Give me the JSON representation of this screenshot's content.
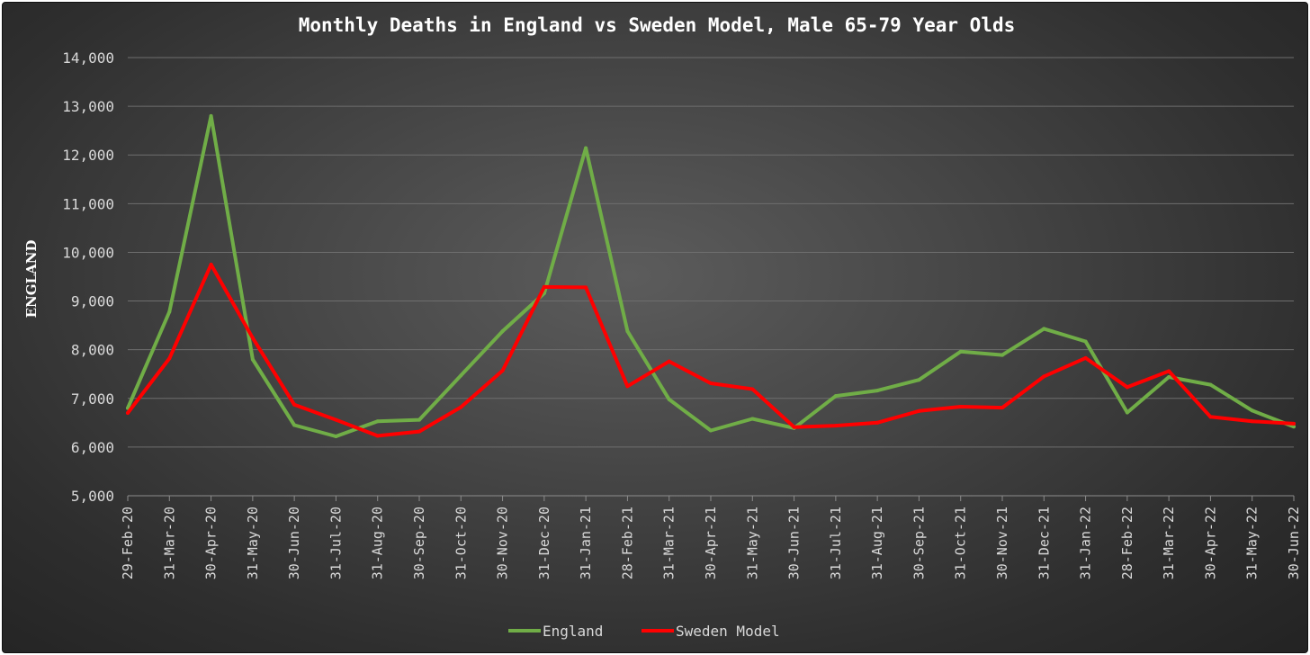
{
  "chart_data": {
    "type": "line",
    "title": "Monthly Deaths in England vs Sweden Model, Male 65-79 Year Olds",
    "ylabel": "ENGLAND",
    "xlabel": "",
    "ylim": [
      5000,
      14000
    ],
    "yticks": [
      5000,
      6000,
      7000,
      8000,
      9000,
      10000,
      11000,
      12000,
      13000,
      14000
    ],
    "ytick_labels": [
      "5,000",
      "6,000",
      "7,000",
      "8,000",
      "9,000",
      "10,000",
      "11,000",
      "12,000",
      "13,000",
      "14,000"
    ],
    "grid": true,
    "legend_position": "bottom",
    "categories": [
      "29-Feb-20",
      "31-Mar-20",
      "30-Apr-20",
      "31-May-20",
      "30-Jun-20",
      "31-Jul-20",
      "31-Aug-20",
      "30-Sep-20",
      "31-Oct-20",
      "30-Nov-20",
      "31-Dec-20",
      "31-Jan-21",
      "28-Feb-21",
      "31-Mar-21",
      "30-Apr-21",
      "31-May-21",
      "30-Jun-21",
      "31-Jul-21",
      "31-Aug-21",
      "30-Sep-21",
      "31-Oct-21",
      "30-Nov-21",
      "31-Dec-21",
      "31-Jan-22",
      "28-Feb-22",
      "31-Mar-22",
      "30-Apr-22",
      "31-May-22",
      "30-Jun-22"
    ],
    "series": [
      {
        "name": "England",
        "color": "#70ad47",
        "values": [
          6800,
          8780,
          12800,
          7800,
          6450,
          6220,
          6530,
          6560,
          7470,
          8380,
          9160,
          12140,
          8380,
          6980,
          6340,
          6580,
          6390,
          7050,
          7160,
          7380,
          7960,
          7890,
          8430,
          8170,
          6710,
          7440,
          7280,
          6750,
          6420
        ]
      },
      {
        "name": "Sweden Model",
        "color": "#ff0000",
        "values": [
          6700,
          7820,
          9750,
          8240,
          6870,
          6560,
          6230,
          6320,
          6820,
          7570,
          9290,
          9280,
          7250,
          7760,
          7310,
          7190,
          6410,
          6440,
          6500,
          6740,
          6830,
          6810,
          7450,
          7830,
          7230,
          7560,
          6620,
          6530,
          6480
        ]
      }
    ]
  }
}
